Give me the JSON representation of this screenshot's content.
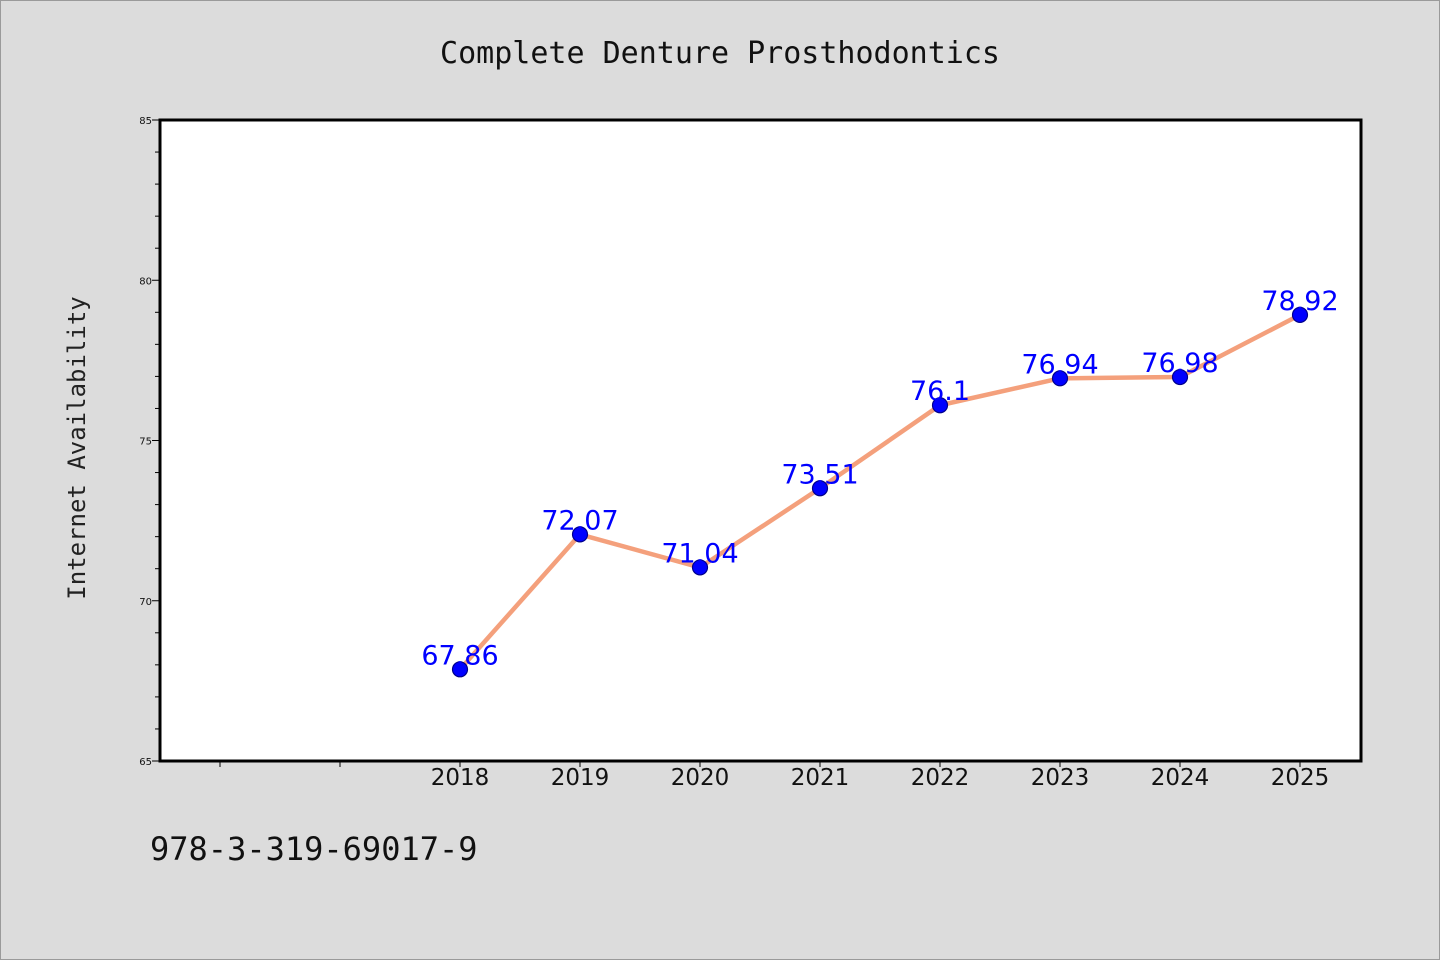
{
  "chart_data": {
    "type": "line",
    "title": "Complete Denture Prosthodontics",
    "xlabel": "",
    "ylabel": "Internet Availability",
    "categories": [
      "2018",
      "2019",
      "2020",
      "2021",
      "2022",
      "2023",
      "2024",
      "2025"
    ],
    "series": [
      {
        "values": [
          67.86,
          72.07,
          71.04,
          73.51,
          76.1,
          76.94,
          76.98,
          78.92
        ],
        "data_labels": [
          "67.86",
          "72.07",
          "71.04",
          "73.51",
          "76.1",
          "76.94",
          "76.98",
          "78.92"
        ]
      }
    ],
    "ylim": [
      65,
      85
    ],
    "yticks": [
      "65",
      "70",
      "75",
      "80",
      "85"
    ],
    "grid": false,
    "legend": "none",
    "colors": {
      "line": "#f4a07c",
      "marker": "#0000ff",
      "marker_edge": "#00008b",
      "label": "#0000ff",
      "plot_bg": "#ffffff",
      "page_bg": "#dcdcdc"
    }
  },
  "footer": {
    "isbn": "978-3-319-69017-9"
  }
}
